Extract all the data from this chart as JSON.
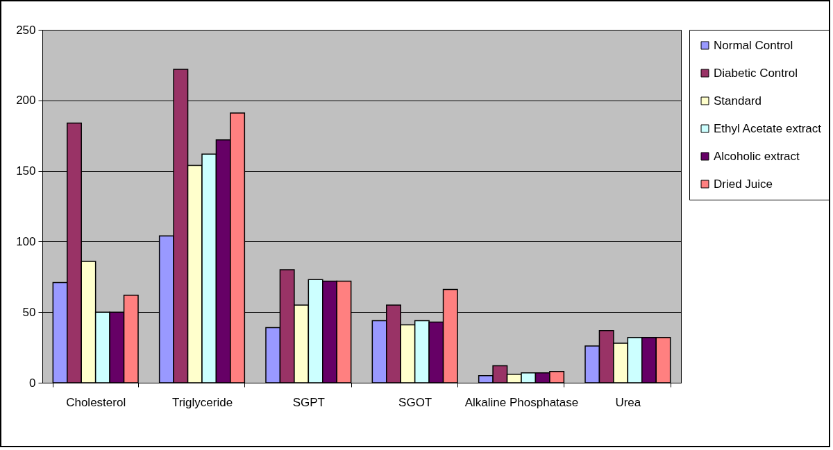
{
  "chart_data": {
    "type": "bar",
    "categories": [
      "Cholesterol",
      "Triglyceride",
      "SGPT",
      "SGOT",
      "Alkaline Phosphatase",
      "Urea"
    ],
    "series": [
      {
        "name": "Normal Control",
        "color": "#9999ff",
        "values": [
          71,
          104,
          39,
          44,
          5,
          26
        ]
      },
      {
        "name": "Diabetic Control",
        "color": "#993366",
        "values": [
          184,
          222,
          80,
          55,
          12,
          37
        ]
      },
      {
        "name": "Standard",
        "color": "#ffffcc",
        "values": [
          86,
          154,
          55,
          41,
          6,
          28
        ]
      },
      {
        "name": "Ethyl Acetate extract",
        "color": "#ccffff",
        "values": [
          50,
          162,
          73,
          44,
          7,
          32
        ]
      },
      {
        "name": "Alcoholic extract",
        "color": "#660066",
        "values": [
          50,
          172,
          72,
          43,
          7,
          32
        ]
      },
      {
        "name": "Dried Juice",
        "color": "#ff8080",
        "values": [
          62,
          191,
          72,
          66,
          8,
          32
        ]
      }
    ],
    "ylim": [
      0,
      250
    ],
    "yticks": [
      0,
      50,
      100,
      150,
      200,
      250
    ],
    "grid": "y",
    "legend": "right"
  }
}
